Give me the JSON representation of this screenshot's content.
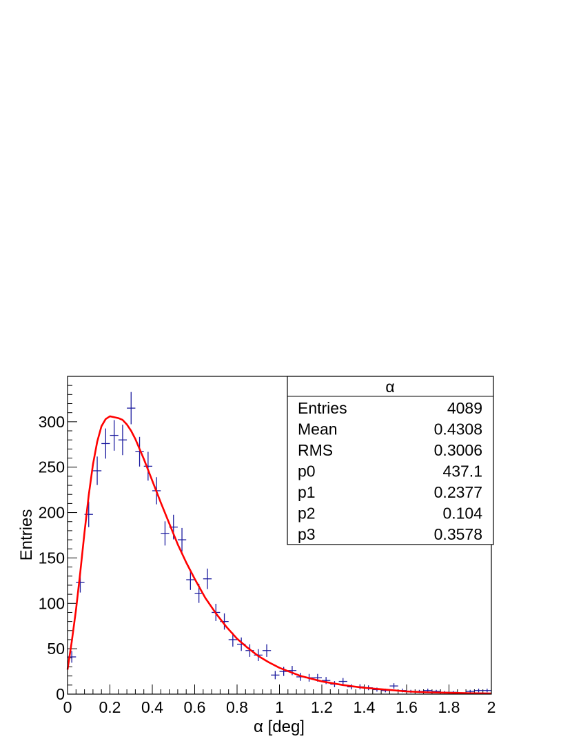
{
  "chart_data": {
    "type": "scatter",
    "title": "",
    "xlabel": "α [deg]",
    "ylabel": "Entries",
    "xlim": [
      0,
      2
    ],
    "ylim": [
      0,
      350
    ],
    "x_tick_labels": [
      "0",
      "0.2",
      "0.4",
      "0.6",
      "0.8",
      "1",
      "1.2",
      "1.4",
      "1.6",
      "1.8",
      "2"
    ],
    "y_tick_labels": [
      "0",
      "50",
      "100",
      "150",
      "200",
      "250",
      "300"
    ],
    "grid": false,
    "legend": "top-right stats box",
    "series": [
      {
        "type": "histogram-points",
        "color": "#1a1a9e",
        "bin_width": 0.04,
        "x": [
          0.02,
          0.06,
          0.1,
          0.14,
          0.18,
          0.22,
          0.26,
          0.3,
          0.34,
          0.38,
          0.42,
          0.46,
          0.5,
          0.54,
          0.58,
          0.62,
          0.66,
          0.7,
          0.74,
          0.78,
          0.82,
          0.86,
          0.9,
          0.94,
          0.98,
          1.02,
          1.06,
          1.1,
          1.14,
          1.18,
          1.22,
          1.26,
          1.3,
          1.34,
          1.38,
          1.42,
          1.46,
          1.5,
          1.54,
          1.58,
          1.62,
          1.66,
          1.7,
          1.74,
          1.78,
          1.82,
          1.86,
          1.9,
          1.94,
          1.98
        ],
        "values": [
          41,
          123,
          198,
          246,
          276,
          285,
          280,
          315,
          267,
          251,
          224,
          177,
          184,
          170,
          126,
          111,
          127,
          90,
          80,
          60,
          55,
          48,
          43,
          48,
          21,
          25,
          26,
          19,
          18,
          18,
          15,
          11,
          14,
          8,
          8,
          7,
          5,
          4,
          9,
          4,
          3,
          3,
          4,
          3,
          2,
          2,
          1,
          3,
          4,
          4
        ]
      },
      {
        "type": "fit-line",
        "color": "#ff0000",
        "x": [
          0.0,
          0.02,
          0.04,
          0.06,
          0.08,
          0.1,
          0.12,
          0.14,
          0.16,
          0.18,
          0.2,
          0.22,
          0.24,
          0.26,
          0.28,
          0.3,
          0.32,
          0.34,
          0.36,
          0.38,
          0.4,
          0.44,
          0.48,
          0.52,
          0.56,
          0.6,
          0.65,
          0.7,
          0.75,
          0.8,
          0.85,
          0.9,
          0.95,
          1.0,
          1.1,
          1.2,
          1.3,
          1.4,
          1.5,
          1.6,
          1.7,
          1.8,
          1.9,
          2.0
        ],
        "values": [
          27,
          58,
          93,
          134,
          178,
          219,
          253,
          278,
          295,
          303,
          306,
          305,
          304,
          302,
          297,
          290,
          281,
          270,
          259,
          247,
          235,
          211,
          188,
          165,
          145,
          127,
          106,
          89,
          74,
          61,
          51,
          42,
          35,
          29,
          20,
          14,
          10,
          7,
          5,
          3,
          2,
          1.5,
          1,
          0.7
        ]
      }
    ],
    "stats_box": {
      "title": "α",
      "rows": [
        {
          "label": "Entries",
          "value": "4089"
        },
        {
          "label": "Mean",
          "value": "0.4308"
        },
        {
          "label": "RMS",
          "value": "0.3006"
        },
        {
          "label": "p0",
          "value": "437.1"
        },
        {
          "label": "p1",
          "value": "0.2377"
        },
        {
          "label": "p2",
          "value": "0.104"
        },
        {
          "label": "p3",
          "value": "0.3578"
        }
      ]
    }
  }
}
